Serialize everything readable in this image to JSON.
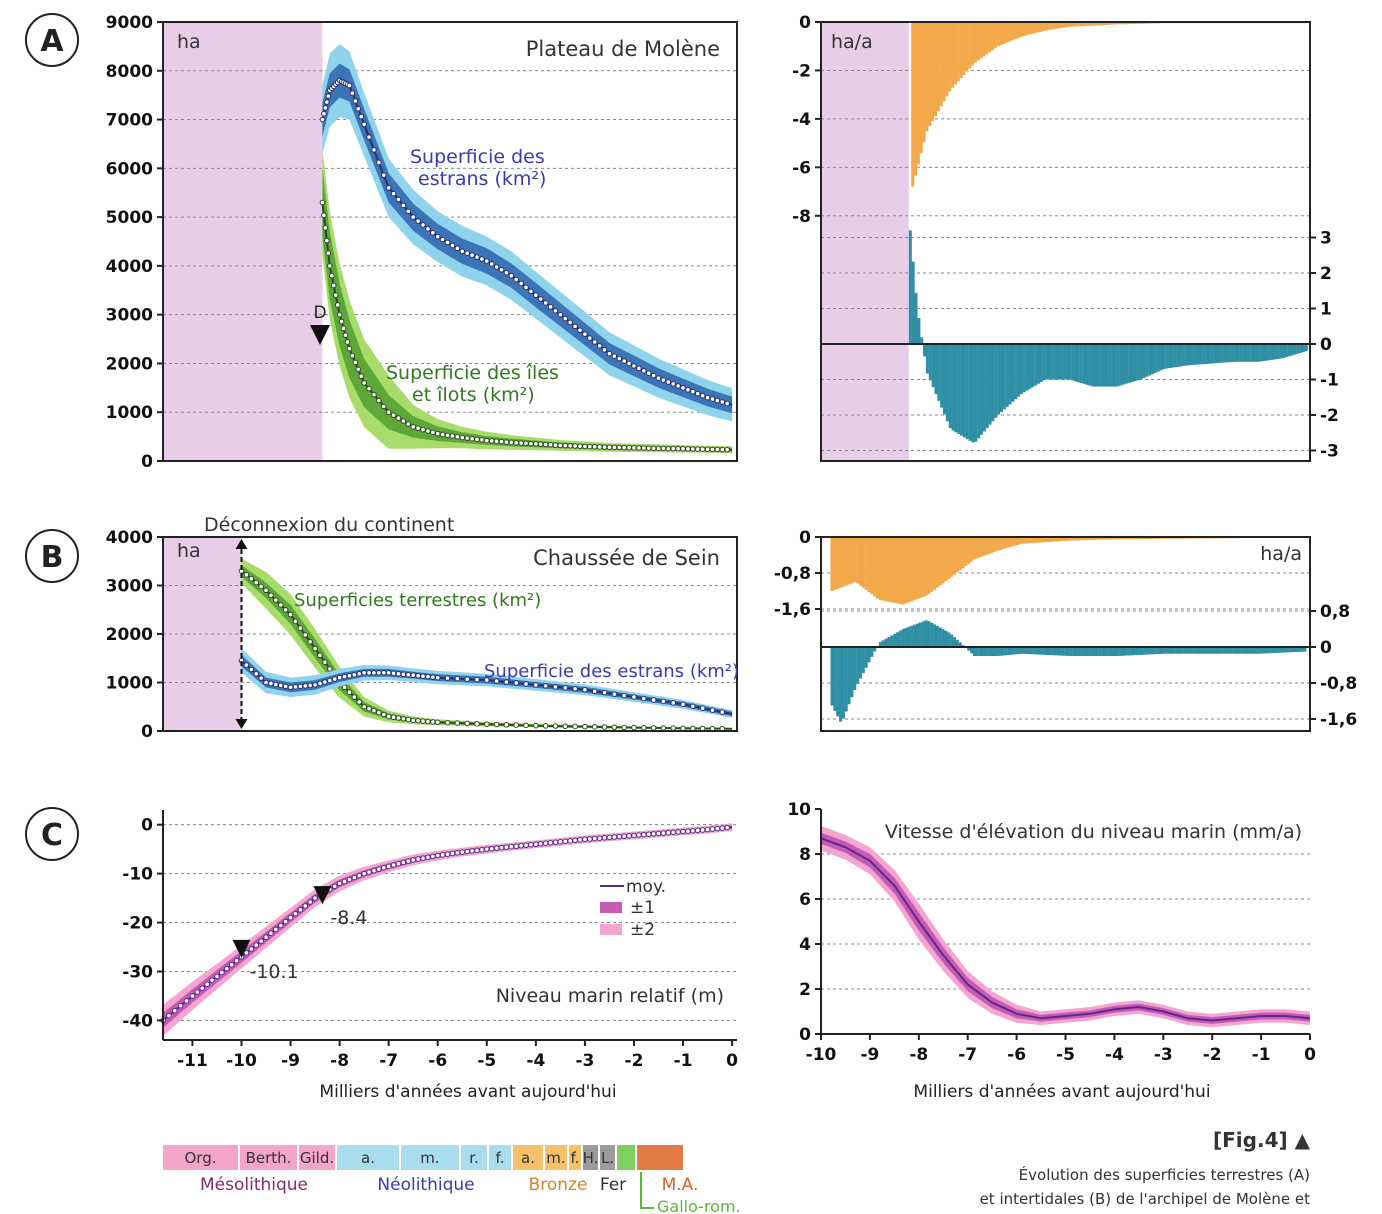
{
  "figure": {
    "fig_label": "[Fig.4]",
    "caption_lines": [
      "Évolution des superficies terrestres (A)",
      "et intertidales (B) de l'archipel de Molène et"
    ]
  },
  "colors": {
    "pink_bg": "#e8cde8",
    "estran_outer": "#8fd3ec",
    "estran_inner": "#3c74b8",
    "estran_line": "#2a2f6e",
    "island_outer": "#a8dc6a",
    "island_inner": "#5ea83a",
    "orange_bar": "#f3a84a",
    "teal_bar": "#2f8fa5",
    "sea_outer": "#f4a6d0",
    "sea_inner": "#c85ab4",
    "sea_line": "#5a2a8c"
  },
  "chart_data": [
    {
      "id": "A-left",
      "panel": "A",
      "type": "area",
      "title": "Plateau de Molène",
      "ylabel": "ha",
      "xlim": [
        -11.6,
        0.1
      ],
      "ylim": [
        0,
        9000
      ],
      "yticks": [
        "0",
        "1000",
        "2000",
        "3000",
        "4000",
        "5000",
        "6000",
        "7000",
        "8000",
        "9000"
      ],
      "marker": {
        "label": "D",
        "x": -8.35,
        "y": 2600
      },
      "series": [
        {
          "name": "Superficie des estrans (km²)",
          "x": [
            -8.35,
            -8.2,
            -8.0,
            -7.8,
            -7.5,
            -7.0,
            -6.5,
            -6.0,
            -5.5,
            -5.0,
            -4.5,
            -4.0,
            -3.5,
            -3.0,
            -2.5,
            -2.0,
            -1.5,
            -1.0,
            -0.5,
            0.0
          ],
          "mean": [
            7000,
            7600,
            7800,
            7700,
            6900,
            5600,
            5000,
            4600,
            4300,
            4100,
            3800,
            3400,
            3000,
            2600,
            2200,
            1950,
            1700,
            1500,
            1300,
            1150
          ],
          "sd1": [
            350,
            350,
            350,
            330,
            320,
            300,
            280,
            260,
            260,
            260,
            250,
            250,
            240,
            230,
            220,
            210,
            200,
            190,
            180,
            170
          ],
          "sd2": [
            700,
            750,
            750,
            700,
            650,
            600,
            560,
            520,
            520,
            500,
            500,
            480,
            470,
            460,
            440,
            420,
            400,
            380,
            360,
            340
          ]
        },
        {
          "name": "Superficie des îles et îlots (km²)",
          "x": [
            -8.35,
            -8.2,
            -8.0,
            -7.8,
            -7.5,
            -7.0,
            -6.5,
            -6.0,
            -5.5,
            -5.0,
            -4.5,
            -4.0,
            -3.5,
            -3.0,
            -2.5,
            -2.0,
            -1.5,
            -1.0,
            -0.5,
            0.0
          ],
          "mean": [
            5300,
            4000,
            3000,
            2300,
            1600,
            1000,
            700,
            560,
            480,
            420,
            380,
            350,
            320,
            300,
            280,
            270,
            260,
            250,
            240,
            230
          ],
          "sd1": [
            700,
            700,
            650,
            600,
            500,
            350,
            220,
            150,
            110,
            90,
            80,
            70,
            60,
            55,
            50,
            50,
            45,
            45,
            40,
            40
          ],
          "sd2": [
            1100,
            1100,
            1050,
            1000,
            900,
            750,
            450,
            300,
            220,
            180,
            150,
            130,
            110,
            100,
            90,
            85,
            80,
            75,
            70,
            70
          ]
        }
      ]
    },
    {
      "id": "A-right",
      "panel": "A",
      "type": "bar",
      "ylabel": "ha/a",
      "xlim": [
        -10.2,
        0.1
      ],
      "upper": {
        "ylim": [
          -9,
          0
        ],
        "yticks": [
          "0",
          "-2",
          "-4",
          "-6",
          "-8"
        ],
        "x": [
          -8.3,
          -8.0,
          -7.5,
          -7.0,
          -6.5,
          -6.0,
          -5.5,
          -5.0,
          -4.0,
          -3.0,
          -2.0,
          -1.0,
          0.0
        ],
        "values": [
          -6.8,
          -4.5,
          -2.8,
          -1.7,
          -1.0,
          -0.6,
          -0.35,
          -0.2,
          -0.1,
          -0.05,
          -0.05,
          -0.05,
          -0.05
        ]
      },
      "lower": {
        "ylim": [
          -3.3,
          3.4
        ],
        "yticks": [
          "3",
          "2",
          "1",
          "0",
          "-1",
          "-2",
          "-3"
        ],
        "x": [
          -8.35,
          -8.2,
          -8.0,
          -7.5,
          -7.0,
          -6.5,
          -6.0,
          -5.5,
          -5.0,
          -4.5,
          -4.0,
          -3.5,
          -3.0,
          -2.5,
          -2.0,
          -1.5,
          -1.0,
          -0.5,
          0.0
        ],
        "values": [
          3.2,
          1.0,
          -0.8,
          -2.4,
          -2.8,
          -2.0,
          -1.4,
          -1.0,
          -1.0,
          -1.2,
          -1.2,
          -1.0,
          -0.7,
          -0.6,
          -0.55,
          -0.5,
          -0.5,
          -0.4,
          -0.2
        ]
      }
    },
    {
      "id": "B-left",
      "panel": "B",
      "type": "area",
      "title": "Chaussée de Sein",
      "ylabel": "ha",
      "annotation": "Déconnexion du continent",
      "xlim": [
        -11.6,
        0.1
      ],
      "ylim": [
        0,
        4000
      ],
      "yticks": [
        "0",
        "1000",
        "2000",
        "3000",
        "4000"
      ],
      "series": [
        {
          "name": "Superficies terrestres (km²)",
          "x": [
            -10.0,
            -9.5,
            -9.0,
            -8.5,
            -8.0,
            -7.5,
            -7.0,
            -6.5,
            -6.0,
            -5.0,
            -4.0,
            -3.0,
            -2.0,
            -1.0,
            0.0
          ],
          "mean": [
            3300,
            2900,
            2400,
            1700,
            1000,
            500,
            300,
            220,
            180,
            140,
            110,
            90,
            70,
            55,
            45
          ],
          "sd1": [
            120,
            160,
            200,
            200,
            160,
            100,
            60,
            40,
            30,
            25,
            20,
            15,
            12,
            10,
            8
          ],
          "sd2": [
            250,
            380,
            420,
            400,
            320,
            200,
            120,
            80,
            60,
            45,
            35,
            30,
            25,
            20,
            15
          ]
        },
        {
          "name": "Superficie des estrans (km²)",
          "x": [
            -10.0,
            -9.5,
            -9.0,
            -8.5,
            -8.0,
            -7.5,
            -7.0,
            -6.5,
            -6.0,
            -5.0,
            -4.0,
            -3.0,
            -2.0,
            -1.0,
            0.0
          ],
          "mean": [
            1450,
            1000,
            900,
            950,
            1100,
            1200,
            1200,
            1150,
            1100,
            1050,
            950,
            850,
            700,
            550,
            350
          ],
          "sd1": [
            120,
            100,
            100,
            100,
            90,
            80,
            80,
            70,
            70,
            70,
            60,
            60,
            50,
            50,
            45
          ],
          "sd2": [
            250,
            220,
            200,
            200,
            180,
            160,
            150,
            140,
            140,
            130,
            120,
            110,
            100,
            90,
            80
          ]
        }
      ]
    },
    {
      "id": "B-right",
      "panel": "B",
      "type": "bar",
      "ylabel": "ha/a",
      "xlim": [
        -10.2,
        0.1
      ],
      "upper": {
        "ylim": [
          -1.75,
          0
        ],
        "yticks": [
          "0",
          "-0,8",
          "-1,6"
        ],
        "x": [
          -10.0,
          -9.5,
          -9.0,
          -8.5,
          -8.0,
          -7.5,
          -7.0,
          -6.5,
          -6.0,
          -5.0,
          -4.0,
          -3.0,
          -2.0,
          -1.0,
          0.0
        ],
        "values": [
          -1.2,
          -1.0,
          -1.4,
          -1.5,
          -1.3,
          -0.9,
          -0.5,
          -0.3,
          -0.15,
          -0.08,
          -0.05,
          -0.04,
          -0.03,
          -0.02,
          -0.02
        ]
      },
      "lower": {
        "ylim": [
          -1.75,
          1.0
        ],
        "yticks": [
          "0,8",
          "0",
          "-0,8",
          "-1,6"
        ],
        "x": [
          -10.0,
          -9.8,
          -9.5,
          -9.0,
          -8.5,
          -8.0,
          -7.5,
          -7.0,
          -6.5,
          -6.0,
          -5.0,
          -4.0,
          -3.0,
          -2.0,
          -1.0,
          0.0
        ],
        "values": [
          -1.3,
          -1.7,
          -0.9,
          0.1,
          0.4,
          0.6,
          0.3,
          -0.2,
          -0.2,
          -0.15,
          -0.2,
          -0.2,
          -0.15,
          -0.15,
          -0.15,
          -0.1
        ]
      }
    },
    {
      "id": "C-left",
      "panel": "C",
      "type": "line",
      "title": "Niveau marin relatif (m)",
      "xlabel": "Milliers d'années avant aujourd'hui",
      "xlim": [
        -11.6,
        0.1
      ],
      "ylim": [
        -44,
        3
      ],
      "xticks": [
        "-11",
        "-10",
        "-9",
        "-8",
        "-7",
        "-6",
        "-5",
        "-4",
        "-3",
        "-2",
        "-1",
        "0"
      ],
      "yticks": [
        "0",
        "-10",
        "-20",
        "-30",
        "-40"
      ],
      "legend": [
        "moy.",
        "±1",
        "±2"
      ],
      "markers": [
        {
          "label": "-10.1",
          "x": -10.0,
          "y": -26
        },
        {
          "label": "-8.4",
          "x": -8.35,
          "y": -15
        }
      ],
      "series": [
        {
          "name": "moy.",
          "x": [
            -11.6,
            -11.0,
            -10.5,
            -10.0,
            -9.5,
            -9.0,
            -8.5,
            -8.0,
            -7.5,
            -7.0,
            -6.5,
            -6.0,
            -5.5,
            -5.0,
            -4.5,
            -4.0,
            -3.5,
            -3.0,
            -2.5,
            -2.0,
            -1.5,
            -1.0,
            -0.5,
            0.0
          ],
          "mean": [
            -40,
            -35,
            -31,
            -27,
            -23,
            -19,
            -15,
            -12,
            -10,
            -8.5,
            -7.2,
            -6.3,
            -5.6,
            -5.0,
            -4.5,
            -4.0,
            -3.5,
            -3.0,
            -2.6,
            -2.2,
            -1.8,
            -1.4,
            -1.0,
            -0.5
          ],
          "sd1": [
            1.5,
            1.4,
            1.3,
            1.2,
            1.1,
            1.0,
            0.9,
            0.8,
            0.7,
            0.6,
            0.6,
            0.5,
            0.5,
            0.5,
            0.5,
            0.4,
            0.4,
            0.4,
            0.4,
            0.4,
            0.4,
            0.4,
            0.4,
            0.4
          ],
          "sd2": [
            3.2,
            2.9,
            2.6,
            2.4,
            2.2,
            2.0,
            1.8,
            1.6,
            1.4,
            1.2,
            1.1,
            1.0,
            0.9,
            0.9,
            0.8,
            0.8,
            0.8,
            0.8,
            0.8,
            0.8,
            0.8,
            0.8,
            0.8,
            0.8
          ]
        }
      ]
    },
    {
      "id": "C-right",
      "panel": "C",
      "type": "area",
      "title": "Vitesse d'élévation du niveau marin (mm/a)",
      "xlabel": "Milliers d'années avant aujourd'hui",
      "xlim": [
        -10,
        0
      ],
      "ylim": [
        0,
        10
      ],
      "xticks": [
        "-10",
        "-9",
        "-8",
        "-7",
        "-6",
        "-5",
        "-4",
        "-3",
        "-2",
        "-1",
        "0"
      ],
      "yticks": [
        "0",
        "2",
        "4",
        "6",
        "8",
        "10"
      ],
      "series": [
        {
          "name": "Vitesse",
          "x": [
            -10.0,
            -9.5,
            -9.0,
            -8.5,
            -8.0,
            -7.5,
            -7.0,
            -6.5,
            -6.0,
            -5.5,
            -5.0,
            -4.5,
            -4.0,
            -3.5,
            -3.0,
            -2.5,
            -2.0,
            -1.5,
            -1.0,
            -0.5,
            0.0
          ],
          "mean": [
            8.7,
            8.3,
            7.7,
            6.6,
            5.0,
            3.5,
            2.2,
            1.4,
            0.9,
            0.7,
            0.8,
            0.9,
            1.1,
            1.2,
            1.0,
            0.7,
            0.6,
            0.7,
            0.8,
            0.8,
            0.7
          ],
          "sd1": [
            0.25,
            0.25,
            0.3,
            0.35,
            0.4,
            0.35,
            0.3,
            0.25,
            0.2,
            0.15,
            0.15,
            0.15,
            0.15,
            0.15,
            0.15,
            0.15,
            0.15,
            0.15,
            0.15,
            0.15,
            0.15
          ],
          "sd2": [
            0.55,
            0.55,
            0.6,
            0.7,
            0.8,
            0.7,
            0.6,
            0.5,
            0.4,
            0.3,
            0.3,
            0.3,
            0.3,
            0.3,
            0.3,
            0.3,
            0.3,
            0.3,
            0.3,
            0.3,
            0.3
          ]
        }
      ]
    }
  ],
  "panel_letters": [
    "A",
    "B",
    "C"
  ],
  "timeline": {
    "cells": [
      "Org.",
      "Berth.",
      "Gild.",
      "a.",
      "m.",
      "r.",
      "f.",
      "a.",
      "m.",
      "f.",
      "H.",
      "L.",
      "",
      ""
    ],
    "periods": [
      "Mésolithique",
      "Néolithique",
      "Bronze",
      "Fer",
      "M.A."
    ],
    "gallo": "Gallo-rom."
  }
}
